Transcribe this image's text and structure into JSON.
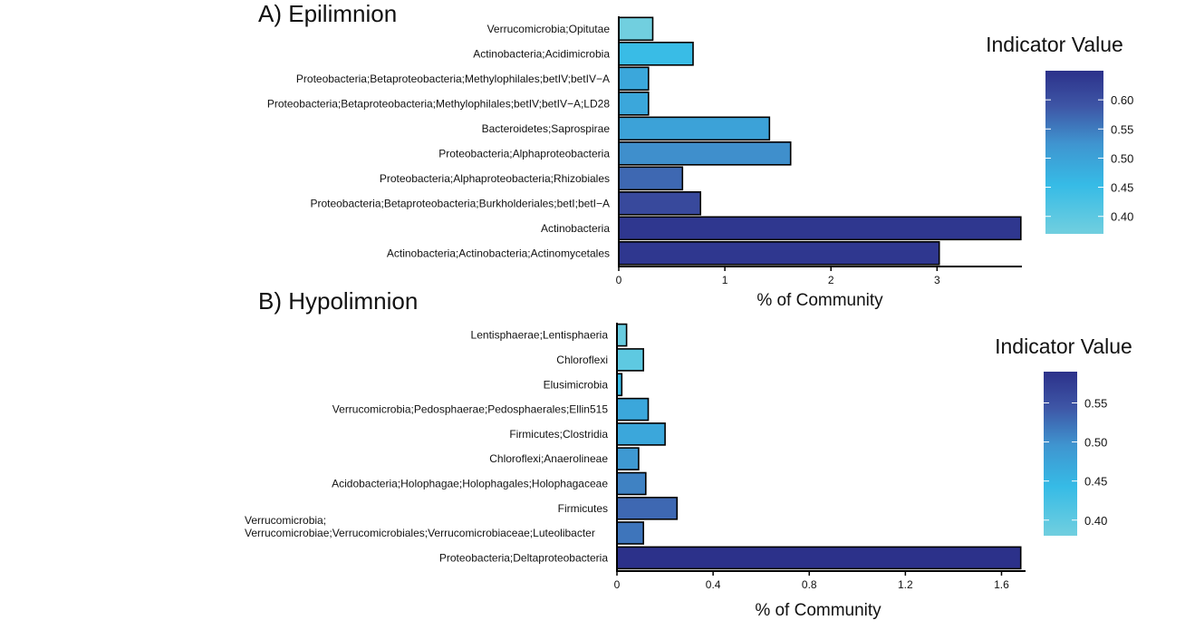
{
  "chart_data": [
    {
      "type": "bar",
      "orientation": "horizontal",
      "title": "A) Epilimnion",
      "xlabel": "% of Community",
      "xlim": [
        0,
        3.8
      ],
      "xticks": [
        0,
        1,
        2,
        3
      ],
      "xtick_labels": [
        "0",
        "1",
        "2",
        "3"
      ],
      "categories": [
        "Verrucomicrobia;Opitutae",
        "Actinobacteria;Acidimicrobia",
        "Proteobacteria;Betaproteobacteria;Methylophilales;betIV;betIV−A",
        "Proteobacteria;Betaproteobacteria;Methylophilales;betIV;betIV−A;LD28",
        "Bacteroidetes;Saprospirae",
        "Proteobacteria;Alphaproteobacteria",
        "Proteobacteria;Alphaproteobacteria;Rhizobiales",
        "Proteobacteria;Betaproteobacteria;Burkholderiales;betI;betI−A",
        "Actinobacteria",
        "Actinobacteria;Actinobacteria;Actinomycetales"
      ],
      "values": [
        0.32,
        0.7,
        0.28,
        0.28,
        1.42,
        1.62,
        0.6,
        0.77,
        3.79,
        3.02
      ],
      "indicator_values": [
        0.37,
        0.45,
        0.49,
        0.49,
        0.5,
        0.53,
        0.57,
        0.61,
        0.64,
        0.64
      ],
      "legend": {
        "title": "Indicator Value",
        "ticks": [
          0.4,
          0.45,
          0.5,
          0.55,
          0.6
        ],
        "tick_labels": [
          "0.40",
          "0.45",
          "0.50",
          "0.55",
          "0.60"
        ],
        "range": [
          0.37,
          0.65
        ],
        "placement": "right"
      }
    },
    {
      "type": "bar",
      "orientation": "horizontal",
      "title": "B) Hypolimnion",
      "xlabel": "% of Community",
      "xlim": [
        0,
        1.7
      ],
      "xticks": [
        0,
        0.4,
        0.8,
        1.2,
        1.6
      ],
      "xtick_labels": [
        "0",
        "0.4",
        "0.8",
        "1.2",
        "1.6"
      ],
      "categories": [
        "Lentisphaerae;Lentisphaeria",
        "Chloroflexi",
        "Elusimicrobia",
        "Verrucomicrobia;Pedosphaerae;Pedosphaerales;Ellin515",
        "Firmicutes;Clostridia",
        "Chloroflexi;Anaerolineae",
        "Acidobacteria;Holophagae;Holophagales;Holophagaceae",
        "Firmicutes",
        "Verrucomicrobia;\nVerrucomicrobiae;Verrucomicrobiales;Verrucomicrobiaceae;Luteolibacter",
        "Proteobacteria;Deltaproteobacteria"
      ],
      "values": [
        0.04,
        0.11,
        0.02,
        0.13,
        0.2,
        0.09,
        0.12,
        0.25,
        0.11,
        1.68
      ],
      "indicator_values": [
        0.39,
        0.4,
        0.44,
        0.47,
        0.47,
        0.49,
        0.51,
        0.53,
        0.52,
        0.59
      ],
      "legend": {
        "title": "Indicator Value",
        "ticks": [
          0.4,
          0.45,
          0.5,
          0.55
        ],
        "tick_labels": [
          "0.40",
          "0.45",
          "0.50",
          "0.55"
        ],
        "range": [
          0.38,
          0.59
        ],
        "placement": "right"
      }
    }
  ],
  "colors": {
    "low": "#71cfdf",
    "mid": "#36bbe6",
    "mid2": "#3f95d0",
    "high": "#2c318a",
    "axis": "#000000"
  }
}
